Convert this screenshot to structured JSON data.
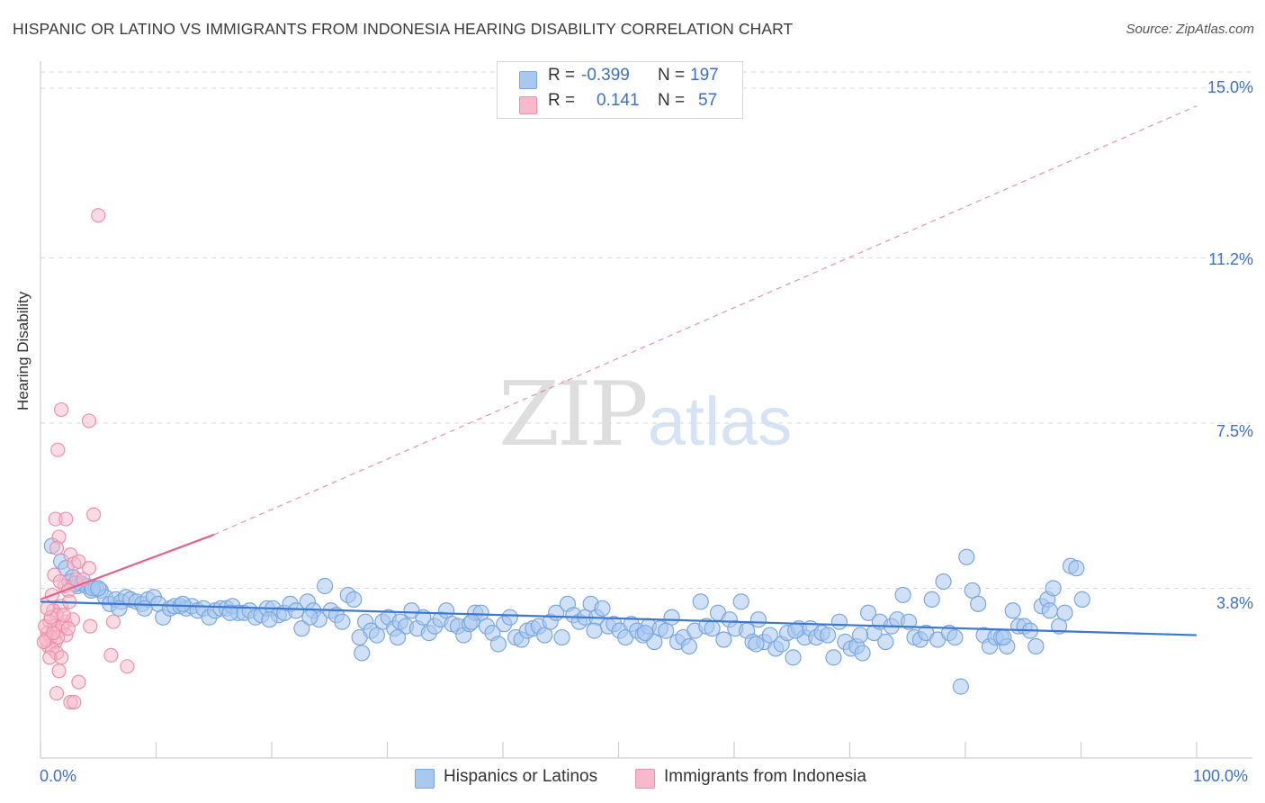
{
  "header": {
    "title": "HISPANIC OR LATINO VS IMMIGRANTS FROM INDONESIA HEARING DISABILITY CORRELATION CHART",
    "source": "Source: ZipAtlas.com"
  },
  "watermark": {
    "zip": "ZIP",
    "atlas": "atlas"
  },
  "legend": {
    "rows": [
      {
        "r_label": "R =",
        "r_value": "-0.399",
        "n_label": "N =",
        "n_value": "197",
        "color": "#a9c8f0"
      },
      {
        "r_label": "R =",
        "r_value": "0.141",
        "n_label": "N =",
        "n_value": "57",
        "color": "#f7b9cb"
      }
    ]
  },
  "colors": {
    "blue_fill": "#a9c8f0",
    "blue_stroke": "#7aa7df",
    "blue_line": "#3a78d4",
    "pink_fill": "#f7b9cb",
    "pink_stroke": "#ee8fab",
    "pink_line": "#e8608c",
    "grid": "#d9d9d9",
    "axis_text": "#3d6fc8"
  },
  "chart_data": {
    "type": "scatter",
    "title": "HISPANIC OR LATINO VS IMMIGRANTS FROM INDONESIA HEARING DISABILITY CORRELATION CHART",
    "xlabel": "",
    "ylabel": "Hearing Disability",
    "xlim": [
      0,
      100
    ],
    "ylim": [
      0,
      15.4
    ],
    "x_tick_labels": [
      "0.0%",
      "100.0%"
    ],
    "y_ticks": [
      3.8,
      7.5,
      11.2,
      15.0
    ],
    "y_tick_labels": [
      "3.8%",
      "7.5%",
      "11.2%",
      "15.0%"
    ],
    "grid": "horizontal dashed",
    "legend_position": "top-center",
    "series": [
      {
        "name": "Hispanics or Latinos",
        "r": -0.399,
        "n": 197,
        "trend": {
          "x0": 0,
          "y0": 3.5,
          "x1": 100,
          "y1": 2.75
        },
        "points": [
          [
            1,
            4.75
          ],
          [
            1.8,
            4.4
          ],
          [
            2.2,
            4.25
          ],
          [
            2.5,
            3.95
          ],
          [
            2.8,
            4.05
          ],
          [
            3.2,
            3.85
          ],
          [
            3.6,
            3.9
          ],
          [
            4,
            3.85
          ],
          [
            4.4,
            3.75
          ],
          [
            4.8,
            3.8
          ],
          [
            5.2,
            3.75
          ],
          [
            5.6,
            3.6
          ],
          [
            6,
            3.45
          ],
          [
            6.5,
            3.55
          ],
          [
            7,
            3.5
          ],
          [
            7.4,
            3.6
          ],
          [
            7.8,
            3.55
          ],
          [
            8.3,
            3.5
          ],
          [
            8.8,
            3.45
          ],
          [
            9.3,
            3.55
          ],
          [
            9.8,
            3.6
          ],
          [
            10.2,
            3.45
          ],
          [
            10.6,
            3.15
          ],
          [
            11.2,
            3.35
          ],
          [
            11.6,
            3.4
          ],
          [
            12.1,
            3.4
          ],
          [
            12.6,
            3.35
          ],
          [
            13.1,
            3.4
          ],
          [
            13.6,
            3.3
          ],
          [
            14.1,
            3.35
          ],
          [
            14.6,
            3.15
          ],
          [
            15.1,
            3.3
          ],
          [
            15.6,
            3.35
          ],
          [
            16.1,
            3.35
          ],
          [
            16.6,
            3.4
          ],
          [
            17.1,
            3.25
          ],
          [
            17.6,
            3.25
          ],
          [
            18.1,
            3.3
          ],
          [
            18.6,
            3.15
          ],
          [
            19.1,
            3.2
          ],
          [
            19.6,
            3.35
          ],
          [
            20.1,
            3.35
          ],
          [
            20.6,
            3.2
          ],
          [
            21.1,
            3.25
          ],
          [
            21.6,
            3.45
          ],
          [
            22.1,
            3.3
          ],
          [
            22.6,
            2.9
          ],
          [
            23.1,
            3.5
          ],
          [
            23.6,
            3.3
          ],
          [
            24.1,
            3.1
          ],
          [
            24.6,
            3.85
          ],
          [
            25.1,
            3.3
          ],
          [
            25.6,
            3.2
          ],
          [
            26.1,
            3.05
          ],
          [
            26.6,
            3.65
          ],
          [
            27.1,
            3.55
          ],
          [
            27.6,
            2.7
          ],
          [
            27.8,
            2.35
          ],
          [
            28.1,
            3.05
          ],
          [
            28.6,
            2.85
          ],
          [
            29.1,
            2.75
          ],
          [
            29.6,
            3.05
          ],
          [
            30.1,
            3.15
          ],
          [
            30.6,
            2.9
          ],
          [
            31.1,
            3.05
          ],
          [
            31.6,
            2.95
          ],
          [
            32.1,
            3.3
          ],
          [
            32.6,
            2.9
          ],
          [
            33.1,
            3.15
          ],
          [
            33.6,
            2.8
          ],
          [
            34.1,
            2.95
          ],
          [
            34.6,
            3.1
          ],
          [
            35.1,
            3.3
          ],
          [
            35.6,
            3.0
          ],
          [
            36.1,
            2.95
          ],
          [
            36.6,
            2.75
          ],
          [
            37.1,
            3.0
          ],
          [
            37.6,
            3.25
          ],
          [
            38.1,
            3.25
          ],
          [
            38.6,
            2.95
          ],
          [
            39.1,
            2.8
          ],
          [
            39.6,
            2.55
          ],
          [
            40.1,
            3.0
          ],
          [
            40.6,
            3.15
          ],
          [
            41.1,
            2.7
          ],
          [
            41.6,
            2.65
          ],
          [
            42.1,
            2.85
          ],
          [
            42.6,
            2.9
          ],
          [
            43.1,
            2.95
          ],
          [
            43.6,
            2.75
          ],
          [
            44.1,
            3.05
          ],
          [
            44.6,
            3.25
          ],
          [
            45.1,
            2.7
          ],
          [
            45.6,
            3.45
          ],
          [
            46.1,
            3.2
          ],
          [
            46.6,
            3.05
          ],
          [
            47.1,
            3.15
          ],
          [
            47.6,
            3.45
          ],
          [
            48.1,
            3.15
          ],
          [
            48.6,
            3.35
          ],
          [
            49.1,
            2.95
          ],
          [
            49.6,
            3.0
          ],
          [
            50.1,
            2.85
          ],
          [
            50.6,
            2.7
          ],
          [
            51.1,
            3.0
          ],
          [
            51.6,
            2.85
          ],
          [
            52.1,
            2.75
          ],
          [
            52.6,
            2.95
          ],
          [
            53.1,
            2.6
          ],
          [
            53.6,
            2.9
          ],
          [
            54.1,
            2.85
          ],
          [
            54.6,
            3.15
          ],
          [
            55.1,
            2.6
          ],
          [
            55.6,
            2.7
          ],
          [
            56.1,
            2.5
          ],
          [
            56.6,
            2.85
          ],
          [
            57.1,
            3.5
          ],
          [
            57.6,
            2.95
          ],
          [
            58.1,
            2.9
          ],
          [
            58.6,
            3.25
          ],
          [
            59.1,
            2.65
          ],
          [
            59.6,
            3.1
          ],
          [
            60.1,
            2.9
          ],
          [
            60.6,
            3.5
          ],
          [
            61.1,
            2.85
          ],
          [
            61.6,
            2.6
          ],
          [
            62.1,
            3.1
          ],
          [
            62.6,
            2.6
          ],
          [
            63.1,
            2.75
          ],
          [
            63.6,
            2.45
          ],
          [
            64.1,
            2.55
          ],
          [
            64.6,
            2.8
          ],
          [
            65.1,
            2.25
          ],
          [
            65.6,
            2.9
          ],
          [
            66.1,
            2.7
          ],
          [
            66.6,
            2.9
          ],
          [
            67.1,
            2.7
          ],
          [
            67.6,
            2.8
          ],
          [
            68.1,
            2.75
          ],
          [
            68.6,
            2.25
          ],
          [
            69.1,
            3.05
          ],
          [
            69.6,
            2.6
          ],
          [
            70.1,
            2.45
          ],
          [
            70.6,
            2.5
          ],
          [
            71.1,
            2.35
          ],
          [
            71.6,
            3.25
          ],
          [
            72.1,
            2.8
          ],
          [
            72.6,
            3.05
          ],
          [
            73.1,
            2.6
          ],
          [
            73.6,
            2.95
          ],
          [
            74.1,
            3.1
          ],
          [
            74.6,
            3.65
          ],
          [
            75.1,
            3.05
          ],
          [
            75.6,
            2.7
          ],
          [
            76.1,
            2.65
          ],
          [
            76.6,
            2.8
          ],
          [
            77.1,
            3.55
          ],
          [
            77.6,
            2.65
          ],
          [
            78.1,
            3.95
          ],
          [
            78.6,
            2.8
          ],
          [
            79.1,
            2.7
          ],
          [
            79.6,
            1.6
          ],
          [
            80.1,
            4.5
          ],
          [
            80.6,
            3.75
          ],
          [
            81.1,
            3.45
          ],
          [
            81.6,
            2.75
          ],
          [
            82.1,
            2.5
          ],
          [
            82.6,
            2.7
          ],
          [
            83.1,
            2.7
          ],
          [
            83.6,
            2.5
          ],
          [
            84.1,
            3.3
          ],
          [
            84.6,
            2.95
          ],
          [
            85.1,
            2.95
          ],
          [
            85.6,
            2.85
          ],
          [
            86.1,
            2.5
          ],
          [
            86.6,
            3.4
          ],
          [
            87.1,
            3.55
          ],
          [
            87.6,
            3.8
          ],
          [
            88.1,
            2.95
          ],
          [
            88.6,
            3.25
          ],
          [
            89.1,
            4.3
          ],
          [
            89.6,
            4.25
          ],
          [
            90.1,
            3.55
          ],
          [
            4.5,
            3.8
          ],
          [
            6.8,
            3.35
          ],
          [
            9,
            3.35
          ],
          [
            16.4,
            3.25
          ],
          [
            19.8,
            3.1
          ],
          [
            30.9,
            2.7
          ],
          [
            47.9,
            2.85
          ],
          [
            61.9,
            2.55
          ],
          [
            70.9,
            2.75
          ],
          [
            83.3,
            2.7
          ],
          [
            87.3,
            3.3
          ],
          [
            3,
            3.9
          ],
          [
            5,
            3.8
          ],
          [
            12.3,
            3.45
          ],
          [
            23.3,
            3.15
          ],
          [
            37.3,
            3.05
          ],
          [
            52.3,
            2.8
          ],
          [
            65.3,
            2.85
          ]
        ]
      },
      {
        "name": "Immigrants from Indonesia",
        "r": 0.141,
        "n": 57,
        "trend_solid": {
          "x0": 0,
          "y0": 3.55,
          "x1": 15,
          "y1": 5.0
        },
        "trend_dashed": {
          "x0": 15,
          "y0": 5.0,
          "x1": 100,
          "y1": 14.6
        },
        "points": [
          [
            5,
            12.15
          ],
          [
            1.8,
            7.8
          ],
          [
            4.2,
            7.55
          ],
          [
            1.5,
            6.9
          ],
          [
            1.3,
            5.35
          ],
          [
            2.2,
            5.35
          ],
          [
            4.6,
            5.45
          ],
          [
            1.6,
            4.95
          ],
          [
            1.4,
            4.7
          ],
          [
            2.6,
            4.55
          ],
          [
            2.9,
            4.35
          ],
          [
            3.3,
            4.4
          ],
          [
            4.2,
            4.25
          ],
          [
            1.2,
            4.1
          ],
          [
            2.1,
            3.85
          ],
          [
            1.7,
            3.95
          ],
          [
            2.4,
            3.75
          ],
          [
            3.1,
            4.0
          ],
          [
            1.0,
            3.65
          ],
          [
            1.8,
            3.4
          ],
          [
            2.5,
            3.5
          ],
          [
            1.1,
            3.3
          ],
          [
            1.4,
            3.2
          ],
          [
            2.1,
            3.05
          ],
          [
            2.8,
            3.1
          ],
          [
            0.8,
            3.05
          ],
          [
            1.2,
            2.95
          ],
          [
            1.6,
            2.85
          ],
          [
            1.9,
            2.95
          ],
          [
            2.2,
            2.75
          ],
          [
            0.6,
            2.8
          ],
          [
            0.9,
            2.7
          ],
          [
            1.3,
            2.6
          ],
          [
            0.7,
            2.5
          ],
          [
            1.0,
            2.45
          ],
          [
            1.4,
            2.35
          ],
          [
            0.8,
            2.25
          ],
          [
            1.8,
            2.25
          ],
          [
            0.5,
            2.65
          ],
          [
            2.4,
            2.9
          ],
          [
            1.6,
            1.95
          ],
          [
            3.3,
            1.7
          ],
          [
            1.4,
            1.45
          ],
          [
            2.6,
            1.25
          ],
          [
            2.9,
            1.25
          ],
          [
            6.1,
            2.3
          ],
          [
            7.5,
            2.05
          ],
          [
            6.3,
            3.05
          ],
          [
            4.3,
            2.95
          ],
          [
            0.4,
            2.95
          ],
          [
            0.9,
            3.15
          ],
          [
            1.5,
            2.7
          ],
          [
            0.3,
            2.6
          ],
          [
            2.0,
            3.2
          ],
          [
            1.1,
            2.8
          ],
          [
            0.6,
            3.35
          ],
          [
            3.7,
            4.0
          ]
        ]
      }
    ]
  },
  "bottom_legend": {
    "items": [
      {
        "label": "Hispanics or Latinos",
        "color": "#a9c8f0"
      },
      {
        "label": "Immigrants from Indonesia",
        "color": "#f7b9cb"
      }
    ]
  }
}
